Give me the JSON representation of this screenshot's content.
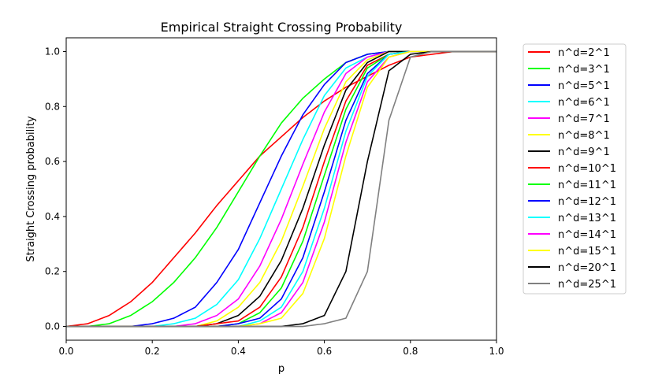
{
  "chart_data": {
    "type": "line",
    "title": "Empirical Straight Crossing Probability",
    "xlabel": "p",
    "ylabel": "Straight Crossing probability",
    "xlim": [
      0,
      1
    ],
    "ylim": [
      -0.05,
      1.05
    ],
    "xticks": [
      "0.0",
      "0.2",
      "0.4",
      "0.6",
      "0.8",
      "1.0"
    ],
    "yticks": [
      "0.0",
      "0.2",
      "0.4",
      "0.6",
      "0.8",
      "1.0"
    ],
    "grid": false,
    "legend_position": "outside-right",
    "x": [
      0,
      0.05,
      0.1,
      0.15,
      0.2,
      0.25,
      0.3,
      0.35,
      0.4,
      0.45,
      0.5,
      0.55,
      0.6,
      0.65,
      0.7,
      0.75,
      0.8,
      0.85,
      0.9,
      0.95,
      1
    ],
    "series": [
      {
        "name": "n^d=2^1",
        "color": "#ff0000",
        "values": [
          0,
          0.01,
          0.04,
          0.09,
          0.16,
          0.25,
          0.34,
          0.44,
          0.53,
          0.62,
          0.69,
          0.76,
          0.82,
          0.87,
          0.91,
          0.95,
          0.98,
          0.99,
          1.0,
          1.0,
          1.0
        ]
      },
      {
        "name": "n^d=3^1",
        "color": "#00ff00",
        "values": [
          0,
          0.0,
          0.01,
          0.04,
          0.09,
          0.16,
          0.25,
          0.36,
          0.49,
          0.62,
          0.74,
          0.83,
          0.9,
          0.96,
          0.99,
          1.0,
          1.0,
          1.0,
          1.0,
          1.0,
          1.0
        ]
      },
      {
        "name": "n^d=5^1",
        "color": "#0000ff",
        "values": [
          0,
          0.0,
          0.0,
          0.0,
          0.01,
          0.03,
          0.07,
          0.16,
          0.28,
          0.45,
          0.62,
          0.77,
          0.88,
          0.96,
          0.99,
          1.0,
          1.0,
          1.0,
          1.0,
          1.0,
          1.0
        ]
      },
      {
        "name": "n^d=6^1",
        "color": "#00ffff",
        "values": [
          0,
          0.0,
          0.0,
          0.0,
          0.0,
          0.01,
          0.03,
          0.08,
          0.17,
          0.32,
          0.5,
          0.68,
          0.84,
          0.94,
          0.98,
          1.0,
          1.0,
          1.0,
          1.0,
          1.0,
          1.0
        ]
      },
      {
        "name": "n^d=7^1",
        "color": "#ff00ff",
        "values": [
          0,
          0.0,
          0.0,
          0.0,
          0.0,
          0.0,
          0.01,
          0.04,
          0.1,
          0.22,
          0.39,
          0.59,
          0.78,
          0.92,
          0.98,
          1.0,
          1.0,
          1.0,
          1.0,
          1.0,
          1.0
        ]
      },
      {
        "name": "n^d=8^1",
        "color": "#ffff00",
        "values": [
          0,
          0.0,
          0.0,
          0.0,
          0.0,
          0.0,
          0.0,
          0.02,
          0.07,
          0.16,
          0.31,
          0.51,
          0.72,
          0.89,
          0.97,
          1.0,
          1.0,
          1.0,
          1.0,
          1.0,
          1.0
        ]
      },
      {
        "name": "n^d=9^1",
        "color": "#000000",
        "values": [
          0,
          0.0,
          0.0,
          0.0,
          0.0,
          0.0,
          0.0,
          0.01,
          0.04,
          0.11,
          0.24,
          0.43,
          0.66,
          0.86,
          0.96,
          1.0,
          1.0,
          1.0,
          1.0,
          1.0,
          1.0
        ]
      },
      {
        "name": "n^d=10^1",
        "color": "#ff0000",
        "values": [
          0,
          0.0,
          0.0,
          0.0,
          0.0,
          0.0,
          0.0,
          0.01,
          0.02,
          0.07,
          0.18,
          0.36,
          0.6,
          0.82,
          0.95,
          0.99,
          1.0,
          1.0,
          1.0,
          1.0,
          1.0
        ]
      },
      {
        "name": "n^d=11^1",
        "color": "#00ff00",
        "values": [
          0,
          0.0,
          0.0,
          0.0,
          0.0,
          0.0,
          0.0,
          0.0,
          0.01,
          0.05,
          0.14,
          0.31,
          0.55,
          0.79,
          0.94,
          0.99,
          1.0,
          1.0,
          1.0,
          1.0,
          1.0
        ]
      },
      {
        "name": "n^d=12^1",
        "color": "#0000ff",
        "values": [
          0,
          0.0,
          0.0,
          0.0,
          0.0,
          0.0,
          0.0,
          0.0,
          0.01,
          0.03,
          0.1,
          0.25,
          0.49,
          0.75,
          0.92,
          0.99,
          1.0,
          1.0,
          1.0,
          1.0,
          1.0
        ]
      },
      {
        "name": "n^d=13^1",
        "color": "#00ffff",
        "values": [
          0,
          0.0,
          0.0,
          0.0,
          0.0,
          0.0,
          0.0,
          0.0,
          0.0,
          0.02,
          0.07,
          0.2,
          0.43,
          0.71,
          0.91,
          0.99,
          1.0,
          1.0,
          1.0,
          1.0,
          1.0
        ]
      },
      {
        "name": "n^d=14^1",
        "color": "#ff00ff",
        "values": [
          0,
          0.0,
          0.0,
          0.0,
          0.0,
          0.0,
          0.0,
          0.0,
          0.0,
          0.01,
          0.05,
          0.16,
          0.38,
          0.67,
          0.89,
          0.98,
          1.0,
          1.0,
          1.0,
          1.0,
          1.0
        ]
      },
      {
        "name": "n^d=15^1",
        "color": "#ffff00",
        "values": [
          0,
          0.0,
          0.0,
          0.0,
          0.0,
          0.0,
          0.0,
          0.0,
          0.0,
          0.01,
          0.03,
          0.12,
          0.32,
          0.62,
          0.87,
          0.98,
          1.0,
          1.0,
          1.0,
          1.0,
          1.0
        ]
      },
      {
        "name": "n^d=20^1",
        "color": "#000000",
        "values": [
          0,
          0.0,
          0.0,
          0.0,
          0.0,
          0.0,
          0.0,
          0.0,
          0.0,
          0.0,
          0.0,
          0.01,
          0.04,
          0.2,
          0.6,
          0.93,
          0.99,
          1.0,
          1.0,
          1.0,
          1.0
        ]
      },
      {
        "name": "n^d=25^1",
        "color": "#808080",
        "values": [
          0,
          0.0,
          0.0,
          0.0,
          0.0,
          0.0,
          0.0,
          0.0,
          0.0,
          0.0,
          0.0,
          0.0,
          0.01,
          0.03,
          0.2,
          0.75,
          0.98,
          1.0,
          1.0,
          1.0,
          1.0
        ]
      }
    ]
  }
}
